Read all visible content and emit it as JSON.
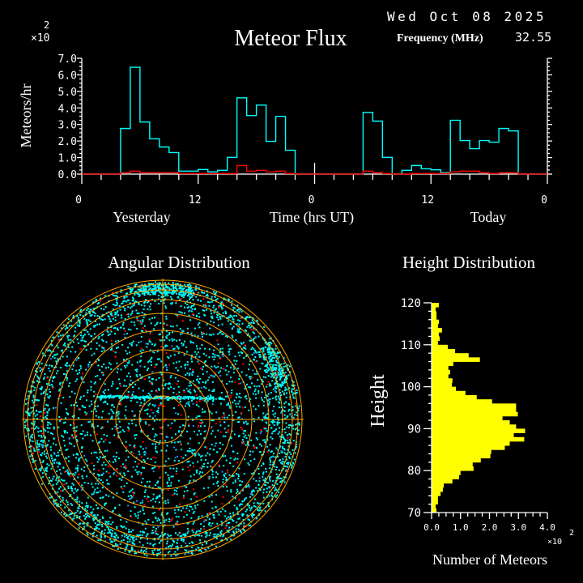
{
  "header": {
    "date": "Wed Oct 08 2025",
    "frequency_label": "Frequency (MHz)",
    "frequency_value": "32.55"
  },
  "colors": {
    "background": "#000000",
    "axis": "#ffffff",
    "flux_all": "#00ffff",
    "flux_sub": "#ff0000",
    "rings": "#ffa500",
    "height_bars": "#ffff00",
    "angular_main": "#00ffff",
    "angular_sub": "#ff0000",
    "angular_alt": "#1e90ff"
  },
  "chart_data": [
    {
      "type": "line",
      "step": true,
      "title": "Meteor Flux",
      "ylabel": "Meteors/hr",
      "xlabel": "Time (hrs UT)",
      "y_multiplier": "×10",
      "y_multiplier_exp": "2",
      "day_labels": [
        "Yesterday",
        "Today"
      ],
      "x_tick_labels": [
        "0",
        "12",
        "0",
        "12",
        "0"
      ],
      "y_tick_labels": [
        "0.0",
        "1.0",
        "2.0",
        "3.0",
        "4.0",
        "5.0",
        "6.0",
        "7.0"
      ],
      "xlim": [
        0,
        48
      ],
      "ylim": [
        0,
        7.0
      ],
      "series": [
        {
          "color": "#00ffff",
          "values": [
            0,
            0,
            0,
            0,
            2.76,
            6.46,
            3.15,
            2.13,
            1.64,
            1.3,
            0.18,
            0.18,
            0.28,
            0.13,
            0.23,
            1.01,
            4.61,
            3.54,
            4.17,
            1.98,
            3.49,
            1.44,
            0,
            0,
            0,
            0,
            0,
            0,
            0,
            3.73,
            3.2,
            1.01,
            0,
            0.23,
            0.52,
            0.32,
            0.26,
            0.08,
            3.25,
            2.03,
            1.54,
            2.03,
            1.93,
            2.76,
            2.61,
            0,
            0,
            0
          ]
        },
        {
          "color": "#ff0000",
          "values": [
            0,
            0,
            0,
            0,
            0.08,
            0.18,
            0.08,
            0.08,
            0.08,
            0.08,
            0.03,
            0.03,
            0.03,
            0.03,
            0.03,
            0.03,
            0.52,
            0.18,
            0.23,
            0.13,
            0.18,
            0.03,
            0,
            0,
            0,
            0,
            0,
            0,
            0,
            0.18,
            0.08,
            0.03,
            0,
            0,
            0.03,
            0.03,
            0.03,
            0.03,
            0.13,
            0.18,
            0.18,
            0.08,
            0.03,
            0.08,
            0.08,
            0,
            0,
            0
          ]
        }
      ]
    },
    {
      "type": "scatter",
      "projection": "polar",
      "title": "Angular Distribution"
    },
    {
      "type": "bar",
      "orientation": "horizontal",
      "title": "Height Distribution",
      "ylabel": "Height",
      "xlabel": "Number of Meteors",
      "x_multiplier": "×10",
      "x_multiplier_exp": "2",
      "x_tick_labels": [
        "0.0",
        "1.0",
        "2.0",
        "3.0",
        "4.0"
      ],
      "y_tick_labels": [
        "70",
        "80",
        "90",
        "100",
        "110",
        "120"
      ],
      "xlim": [
        0,
        4.0
      ],
      "ylim": [
        70,
        120
      ],
      "categories": [
        119,
        118,
        117,
        116,
        115,
        114,
        113,
        112,
        111,
        110,
        109,
        108,
        107,
        106,
        105,
        104,
        103,
        102,
        101,
        100,
        99,
        98,
        97,
        96,
        95,
        94,
        93,
        92,
        91,
        90,
        89,
        88,
        87,
        86,
        85,
        84,
        83,
        82,
        81,
        80,
        79,
        78,
        77,
        76,
        75,
        74,
        73,
        72,
        71,
        70
      ],
      "values": [
        0.25,
        0.14,
        0.17,
        0.17,
        0.25,
        0.22,
        0.36,
        0.25,
        0.28,
        0.22,
        0.56,
        0.81,
        1.28,
        1.67,
        0.75,
        0.58,
        0.64,
        0.58,
        0.72,
        0.7,
        0.84,
        1.17,
        1.56,
        2.09,
        2.92,
        2.92,
        2.98,
        2.45,
        2.7,
        2.92,
        3.23,
        2.84,
        3.2,
        2.7,
        2.53,
        2.06,
        2.03,
        1.7,
        1.42,
        1.45,
        1.0,
        0.95,
        0.72,
        0.42,
        0.39,
        0.31,
        0.22,
        0.22,
        0.14,
        0.17
      ]
    }
  ]
}
